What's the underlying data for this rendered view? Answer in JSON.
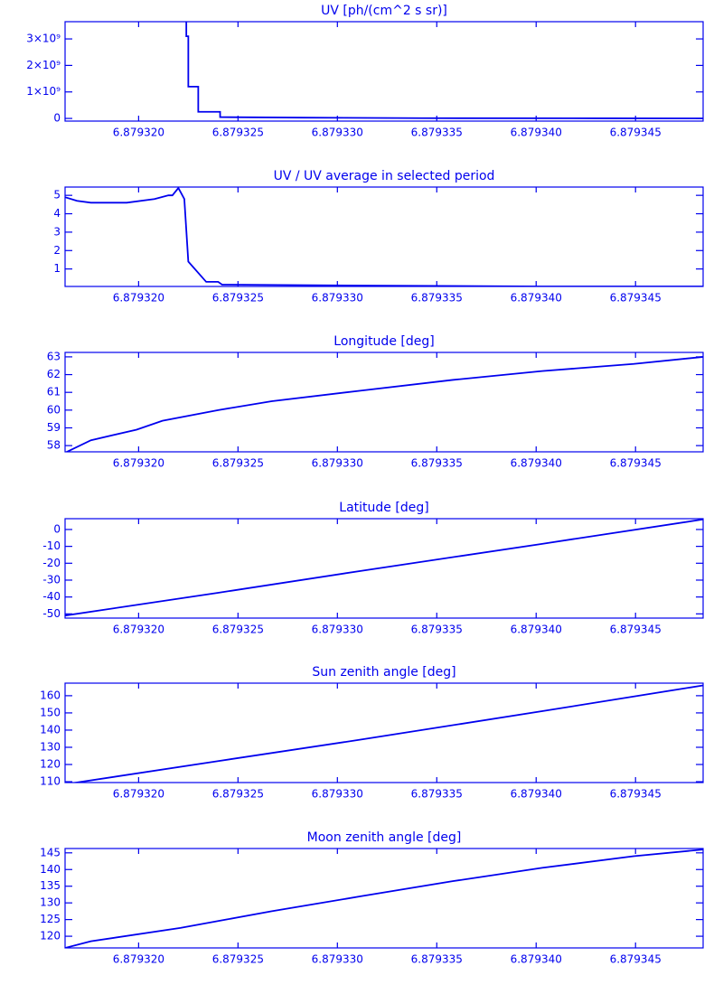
{
  "chart_data": [
    {
      "type": "line",
      "title": "UV [ph/(cm^2 s sr)]",
      "color": "#0000ee",
      "x": [
        6.8793224,
        6.8793224,
        6.8793225,
        6.8793225,
        6.879323,
        6.879323,
        6.8793241,
        6.8793241,
        6.8793283,
        6.8793342,
        6.8793435,
        6.8793484
      ],
      "values": [
        3700000000,
        3100000000,
        3100000000,
        1200000000,
        1200000000,
        250000000,
        250000000,
        50000000,
        30000000,
        10000000,
        5000000,
        3000000
      ],
      "xlim": [
        6.8793163,
        6.8793484
      ],
      "xticks": [
        {
          "value": 6.87932,
          "label": "6.879320"
        },
        {
          "value": 6.879325,
          "label": "6.879325"
        },
        {
          "value": 6.87933,
          "label": "6.879330"
        },
        {
          "value": 6.879335,
          "label": "6.879335"
        },
        {
          "value": 6.87934,
          "label": "6.879340"
        },
        {
          "value": 6.879345,
          "label": "6.879345"
        }
      ],
      "ylim": [
        -100000000,
        3650000000
      ],
      "yticks": [
        0,
        {
          "value": 1000000000,
          "label": "1×10⁹"
        },
        {
          "value": 2000000000,
          "label": "2×10⁹"
        },
        {
          "value": 3000000000,
          "label": "3×10⁹"
        }
      ]
    },
    {
      "type": "line",
      "title": "UV / UV average in selected period",
      "color": "#0000ee",
      "x": [
        6.8793163,
        6.8793169,
        6.8793176,
        6.8793194,
        6.8793208,
        6.8793215,
        6.8793217,
        6.879322,
        6.8793221,
        6.8793223,
        6.8793225,
        6.8793234,
        6.879324,
        6.8793242,
        6.8793312,
        6.8793403,
        6.8793484
      ],
      "values": [
        4.9,
        4.7,
        4.6,
        4.6,
        4.8,
        5.0,
        5.0,
        5.4,
        5.2,
        4.8,
        1.4,
        0.3,
        0.3,
        0.15,
        0.1,
        0.05,
        0.05
      ],
      "xlim": [
        6.8793163,
        6.8793484
      ],
      "xticks": [
        {
          "value": 6.87932,
          "label": "6.879320"
        },
        {
          "value": 6.879325,
          "label": "6.879325"
        },
        {
          "value": 6.87933,
          "label": "6.879330"
        },
        {
          "value": 6.879335,
          "label": "6.879335"
        },
        {
          "value": 6.87934,
          "label": "6.879340"
        },
        {
          "value": 6.879345,
          "label": "6.879345"
        }
      ],
      "ylim": [
        0.05,
        5.45
      ],
      "yticks": [
        1,
        2,
        3,
        4,
        5
      ]
    },
    {
      "type": "line",
      "title": "Longitude [deg]",
      "color": "#0000ee",
      "x": [
        6.8793163,
        6.8793176,
        6.8793199,
        6.8793212,
        6.879324,
        6.8793267,
        6.8793312,
        6.8793358,
        6.8793403,
        6.8793449,
        6.8793484
      ],
      "values": [
        57.6,
        58.3,
        58.9,
        59.4,
        60.0,
        60.5,
        61.1,
        61.7,
        62.2,
        62.6,
        63.0
      ],
      "xlim": [
        6.8793163,
        6.8793484
      ],
      "xticks": [
        {
          "value": 6.87932,
          "label": "6.879320"
        },
        {
          "value": 6.879325,
          "label": "6.879325"
        },
        {
          "value": 6.87933,
          "label": "6.879330"
        },
        {
          "value": 6.879335,
          "label": "6.879335"
        },
        {
          "value": 6.87934,
          "label": "6.879340"
        },
        {
          "value": 6.879345,
          "label": "6.879345"
        }
      ],
      "ylim": [
        57.65,
        63.25
      ],
      "yticks": [
        58,
        59,
        60,
        61,
        62,
        63
      ]
    },
    {
      "type": "line",
      "title": "Latitude [deg]",
      "color": "#0000ee",
      "x": [
        6.8793163,
        6.879324,
        6.8793312,
        6.8793403,
        6.8793484
      ],
      "values": [
        -51,
        -37.5,
        -24.5,
        -8.5,
        6
      ],
      "xlim": [
        6.8793163,
        6.8793484
      ],
      "xticks": [
        {
          "value": 6.87932,
          "label": "6.879320"
        },
        {
          "value": 6.879325,
          "label": "6.879325"
        },
        {
          "value": 6.87933,
          "label": "6.879330"
        },
        {
          "value": 6.879335,
          "label": "6.879335"
        },
        {
          "value": 6.87934,
          "label": "6.879340"
        },
        {
          "value": 6.879345,
          "label": "6.879345"
        }
      ],
      "ylim": [
        -52.5,
        6.4
      ],
      "yticks": [
        -50,
        -40,
        -30,
        -20,
        -10,
        0
      ]
    },
    {
      "type": "line",
      "title": "Sun zenith angle [deg]",
      "color": "#0000ee",
      "x": [
        6.8793163,
        6.879324,
        6.8793312,
        6.8793403,
        6.8793484
      ],
      "values": [
        108.5,
        122,
        134.5,
        151,
        166
      ],
      "xlim": [
        6.8793163,
        6.8793484
      ],
      "xticks": [
        {
          "value": 6.87932,
          "label": "6.879320"
        },
        {
          "value": 6.879325,
          "label": "6.879325"
        },
        {
          "value": 6.87933,
          "label": "6.879330"
        },
        {
          "value": 6.879335,
          "label": "6.879335"
        },
        {
          "value": 6.87934,
          "label": "6.879340"
        },
        {
          "value": 6.879345,
          "label": "6.879345"
        }
      ],
      "ylim": [
        109.5,
        167.3
      ],
      "yticks": [
        110,
        120,
        130,
        140,
        150,
        160
      ]
    },
    {
      "type": "line",
      "title": "Moon zenith angle [deg]",
      "color": "#0000ee",
      "x": [
        6.8793163,
        6.8793176,
        6.8793221,
        6.8793267,
        6.8793312,
        6.8793358,
        6.8793403,
        6.8793449,
        6.8793484
      ],
      "values": [
        116.5,
        118.5,
        122.5,
        127.5,
        132,
        136.5,
        140.5,
        144,
        146
      ],
      "xlim": [
        6.8793163,
        6.8793484
      ],
      "xticks": [
        {
          "value": 6.87932,
          "label": "6.879320"
        },
        {
          "value": 6.879325,
          "label": "6.879325"
        },
        {
          "value": 6.87933,
          "label": "6.879330"
        },
        {
          "value": 6.879335,
          "label": "6.879335"
        },
        {
          "value": 6.87934,
          "label": "6.879340"
        },
        {
          "value": 6.879345,
          "label": "6.879345"
        }
      ],
      "ylim": [
        116.5,
        146.3
      ],
      "yticks": [
        120,
        125,
        130,
        135,
        140,
        145
      ]
    }
  ]
}
